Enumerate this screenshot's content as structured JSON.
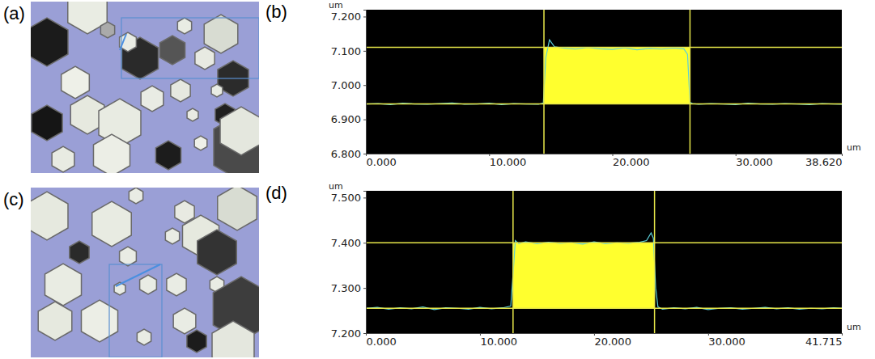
{
  "images": [
    {
      "panel": "(a)"
    },
    {
      "panel": "(c)"
    }
  ],
  "chart_data": [
    {
      "type": "line",
      "panel": "(b)",
      "x_label": "um",
      "y_label": "um",
      "xlim": [
        0,
        38.62
      ],
      "ylim": [
        6.8,
        7.22
      ],
      "xticks": [
        {
          "value": 0,
          "label": "0.000"
        },
        {
          "value": 10,
          "label": "10.000"
        },
        {
          "value": 20,
          "label": "20.000"
        },
        {
          "value": 30,
          "label": "30.000"
        },
        {
          "value": 38.62,
          "label": "38.620"
        }
      ],
      "yticks": [
        {
          "value": 6.8,
          "label": "6.800"
        },
        {
          "value": 6.9,
          "label": "6.900"
        },
        {
          "value": 7.0,
          "label": "7.000"
        },
        {
          "value": 7.1,
          "label": "7.100"
        },
        {
          "value": 7.2,
          "label": "7.200"
        }
      ],
      "cursors": {
        "x": [
          14.45,
          26.3
        ],
        "y": [
          6.945,
          7.11
        ]
      },
      "x": [
        0,
        1,
        2,
        3,
        4,
        5,
        6,
        7,
        8,
        9,
        10,
        11,
        12,
        13,
        14,
        14.4,
        14.6,
        14.9,
        15.3,
        16,
        17,
        18,
        19,
        20,
        21,
        22,
        23,
        24,
        25,
        25.8,
        26.1,
        26.3,
        26.5,
        27,
        28,
        29,
        30,
        31,
        32,
        33,
        34,
        35,
        36,
        37,
        38,
        38.62
      ],
      "series": [
        {
          "color": "#5ccfd8",
          "values": [
            6.945,
            6.946,
            6.943,
            6.947,
            6.945,
            6.944,
            6.946,
            6.948,
            6.944,
            6.945,
            6.947,
            6.943,
            6.946,
            6.945,
            6.944,
            6.948,
            7.08,
            7.132,
            7.112,
            7.108,
            7.105,
            7.11,
            7.106,
            7.104,
            7.109,
            7.103,
            7.107,
            7.105,
            7.108,
            7.106,
            7.09,
            6.95,
            6.946,
            6.944,
            6.946,
            6.945,
            6.943,
            6.947,
            6.945,
            6.944,
            6.946,
            6.945,
            6.943,
            6.946,
            6.945,
            6.944
          ]
        }
      ]
    },
    {
      "type": "line",
      "panel": "(d)",
      "x_label": "um",
      "y_label": "um",
      "xlim": [
        0,
        41.715
      ],
      "ylim": [
        7.2,
        7.515
      ],
      "xticks": [
        {
          "value": 0,
          "label": "0.000"
        },
        {
          "value": 10,
          "label": "10.000"
        },
        {
          "value": 20,
          "label": "20.000"
        },
        {
          "value": 30,
          "label": "30.000"
        },
        {
          "value": 41.715,
          "label": "41.715"
        }
      ],
      "yticks": [
        {
          "value": 7.2,
          "label": "7.200"
        },
        {
          "value": 7.3,
          "label": "7.300"
        },
        {
          "value": 7.4,
          "label": "7.400"
        },
        {
          "value": 7.5,
          "label": "7.500"
        }
      ],
      "cursors": {
        "x": [
          12.9,
          25.3
        ],
        "y": [
          7.255,
          7.4
        ]
      },
      "x": [
        0,
        1,
        2,
        3,
        4,
        5,
        6,
        7,
        8,
        9,
        10,
        11,
        12,
        12.7,
        12.9,
        13.1,
        13.4,
        14,
        15,
        16,
        17,
        18,
        19,
        20,
        21,
        22,
        23,
        24,
        24.6,
        25.0,
        25.2,
        25.4,
        25.6,
        26,
        27,
        28,
        29,
        30,
        31,
        32,
        33,
        34,
        35,
        36,
        37,
        38,
        39,
        40,
        41,
        41.715
      ],
      "series": [
        {
          "color": "#5ccfd8",
          "values": [
            7.255,
            7.257,
            7.253,
            7.256,
            7.254,
            7.258,
            7.252,
            7.256,
            7.255,
            7.253,
            7.257,
            7.254,
            7.256,
            7.26,
            7.33,
            7.405,
            7.398,
            7.402,
            7.398,
            7.401,
            7.399,
            7.4,
            7.397,
            7.402,
            7.398,
            7.4,
            7.399,
            7.401,
            7.405,
            7.422,
            7.41,
            7.3,
            7.258,
            7.253,
            7.256,
            7.254,
            7.257,
            7.252,
            7.255,
            7.256,
            7.253,
            7.255,
            7.257,
            7.254,
            7.256,
            7.253,
            7.255,
            7.254,
            7.256,
            7.255
          ]
        }
      ]
    }
  ]
}
